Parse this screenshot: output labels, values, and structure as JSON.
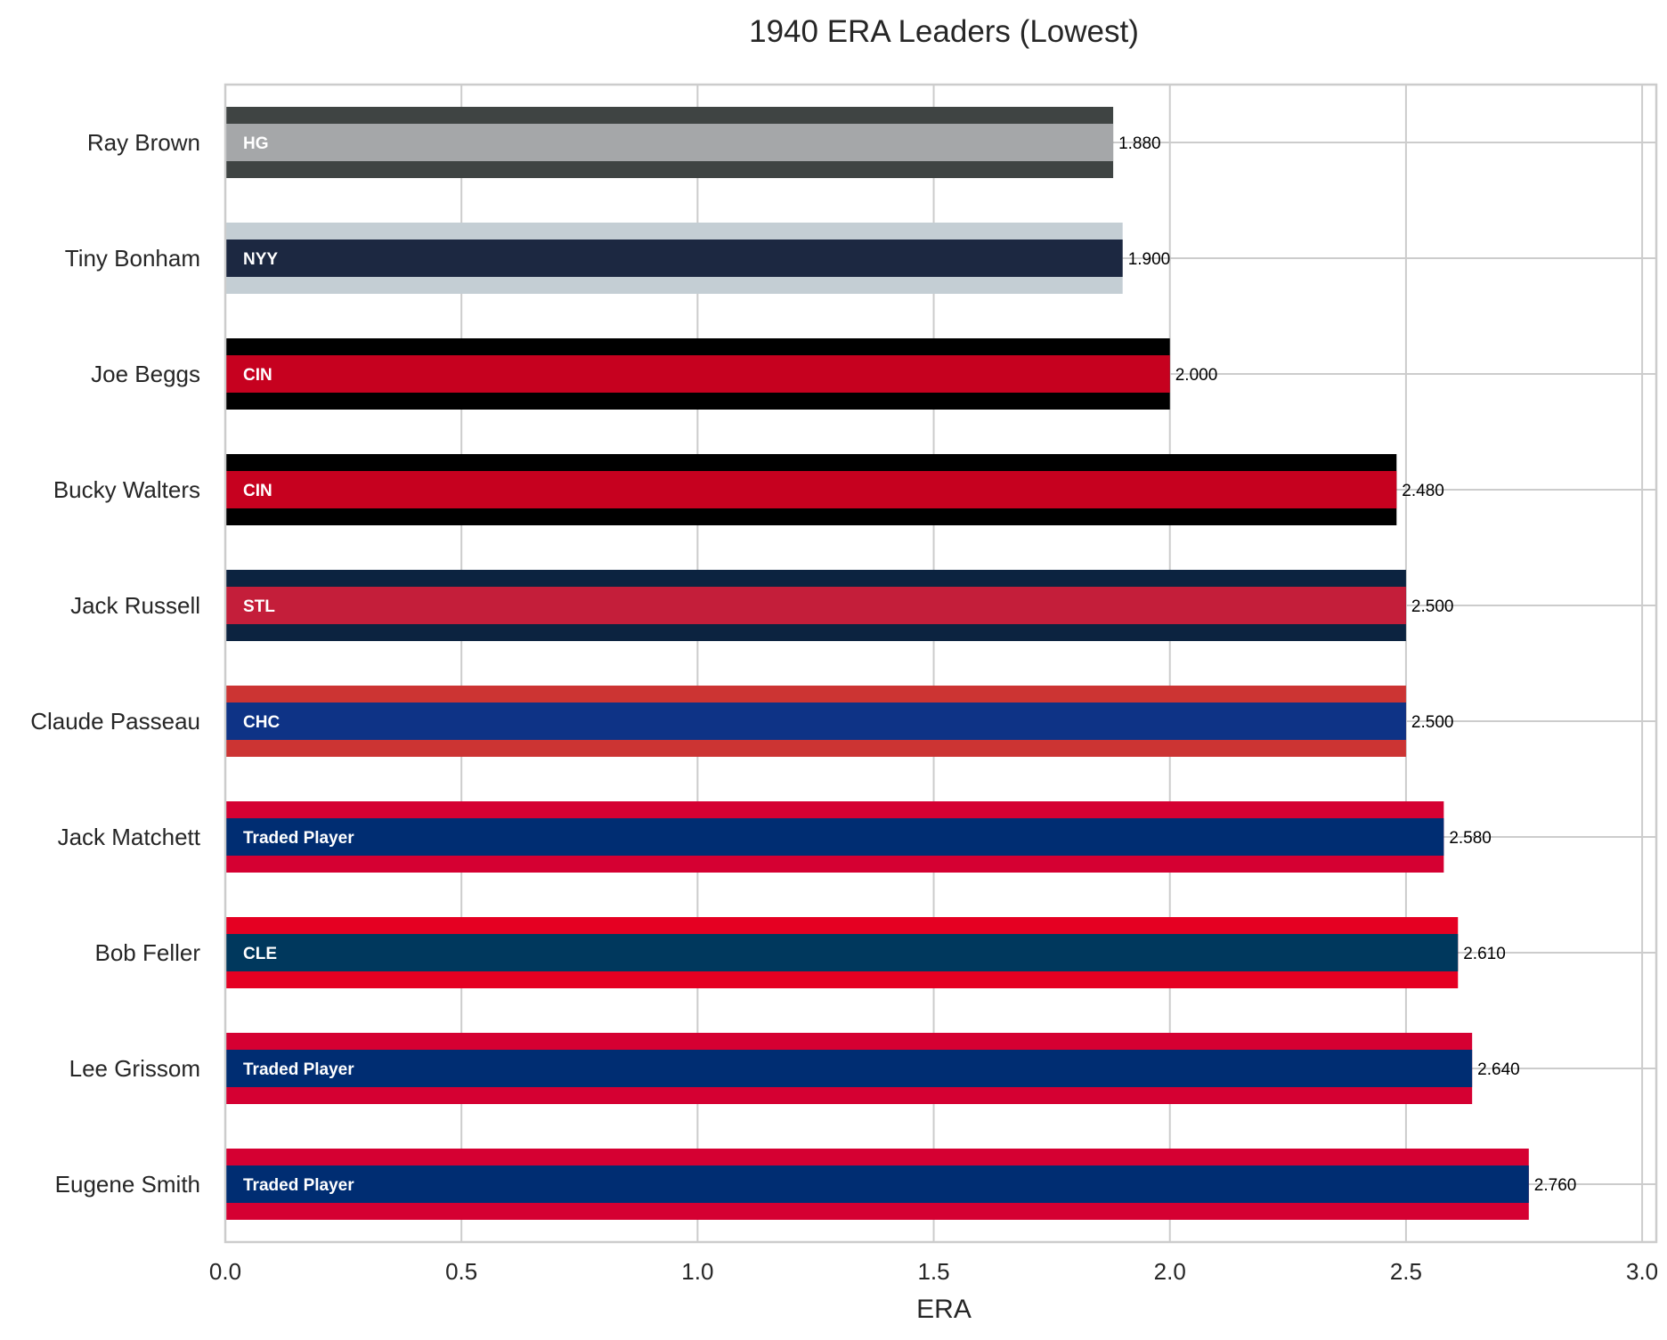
{
  "chart_data": {
    "type": "bar",
    "orientation": "horizontal",
    "title": "1940 ERA Leaders (Lowest)",
    "xlabel": "ERA",
    "ylabel": "",
    "xlim": [
      0,
      3.03
    ],
    "xticks": [
      "0.0",
      "0.5",
      "1.0",
      "1.5",
      "2.0",
      "2.5",
      "3.0"
    ],
    "grid": true,
    "categories": [
      "Ray Brown",
      "Tiny Bonham",
      "Joe Beggs",
      "Bucky Walters",
      "Jack Russell",
      "Claude Passeau",
      "Jack Matchett",
      "Bob Feller",
      "Lee Grissom",
      "Eugene Smith"
    ],
    "values": [
      1.88,
      1.9,
      2.0,
      2.48,
      2.5,
      2.5,
      2.58,
      2.61,
      2.64,
      2.76
    ],
    "value_labels": [
      "1.880",
      "1.900",
      "2.000",
      "2.480",
      "2.500",
      "2.500",
      "2.580",
      "2.610",
      "2.640",
      "2.760"
    ],
    "team_labels": [
      "HG",
      "NYY",
      "CIN",
      "CIN",
      "STL",
      "CHC",
      "Traded Player",
      "CLE",
      "Traded Player",
      "Traded Player"
    ],
    "outer_colors": [
      "#3f4443",
      "#c4ced4",
      "#000000",
      "#000000",
      "#0c2340",
      "#cc3433",
      "#d50032",
      "#e50022",
      "#d50032",
      "#d50032"
    ],
    "inner_colors": [
      "#a5a7a9",
      "#1c2841",
      "#c6011f",
      "#c6011f",
      "#c41e3a",
      "#0e3386",
      "#002d72",
      "#00385d",
      "#002d72",
      "#002d72"
    ]
  }
}
